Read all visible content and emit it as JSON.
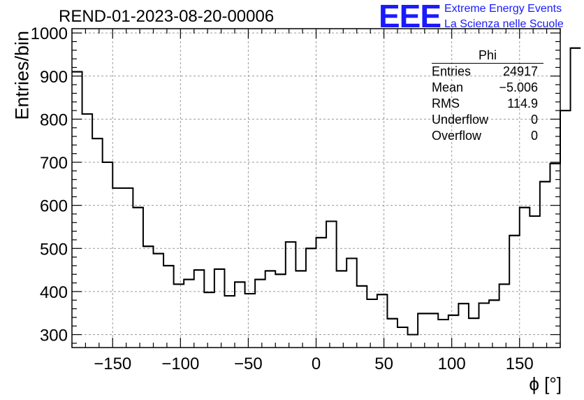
{
  "title": "REND-01-2023-08-20-00006",
  "logo": {
    "mark": "EEE",
    "line1": "Extreme Energy Events",
    "line2": "La Scienza nelle Scuole"
  },
  "stats": {
    "name": "Phi",
    "rows": [
      {
        "label": "Entries",
        "value": "24917"
      },
      {
        "label": "Mean",
        "value": "−5.006"
      },
      {
        "label": "RMS",
        "value": "114.9"
      },
      {
        "label": "Underflow",
        "value": "0"
      },
      {
        "label": "Overflow",
        "value": "0"
      }
    ]
  },
  "chart_data": {
    "type": "histogram",
    "title": "REND-01-2023-08-20-00006",
    "xlabel": "ϕ [°]",
    "ylabel": "Entries/bin",
    "xlim": [
      -180,
      180
    ],
    "ylim": [
      270,
      1010
    ],
    "xticks": [
      -150,
      -100,
      -50,
      0,
      50,
      100,
      150
    ],
    "xtick_labels": [
      "−150",
      "−100",
      "−50",
      "0",
      "50",
      "100",
      "150"
    ],
    "yticks": [
      300,
      400,
      500,
      600,
      700,
      800,
      900,
      1000
    ],
    "grid": true,
    "line_color": "#000000",
    "bin_edges_start": -180,
    "bin_width": 7.5,
    "values": [
      910,
      812,
      755,
      700,
      640,
      640,
      595,
      505,
      488,
      460,
      417,
      428,
      450,
      398,
      452,
      390,
      422,
      395,
      428,
      448,
      440,
      515,
      448,
      500,
      525,
      563,
      448,
      477,
      413,
      382,
      393,
      337,
      317,
      300,
      349,
      349,
      335,
      345,
      372,
      338,
      373,
      380,
      417,
      530,
      595,
      575,
      655,
      697,
      820,
      965
    ]
  }
}
